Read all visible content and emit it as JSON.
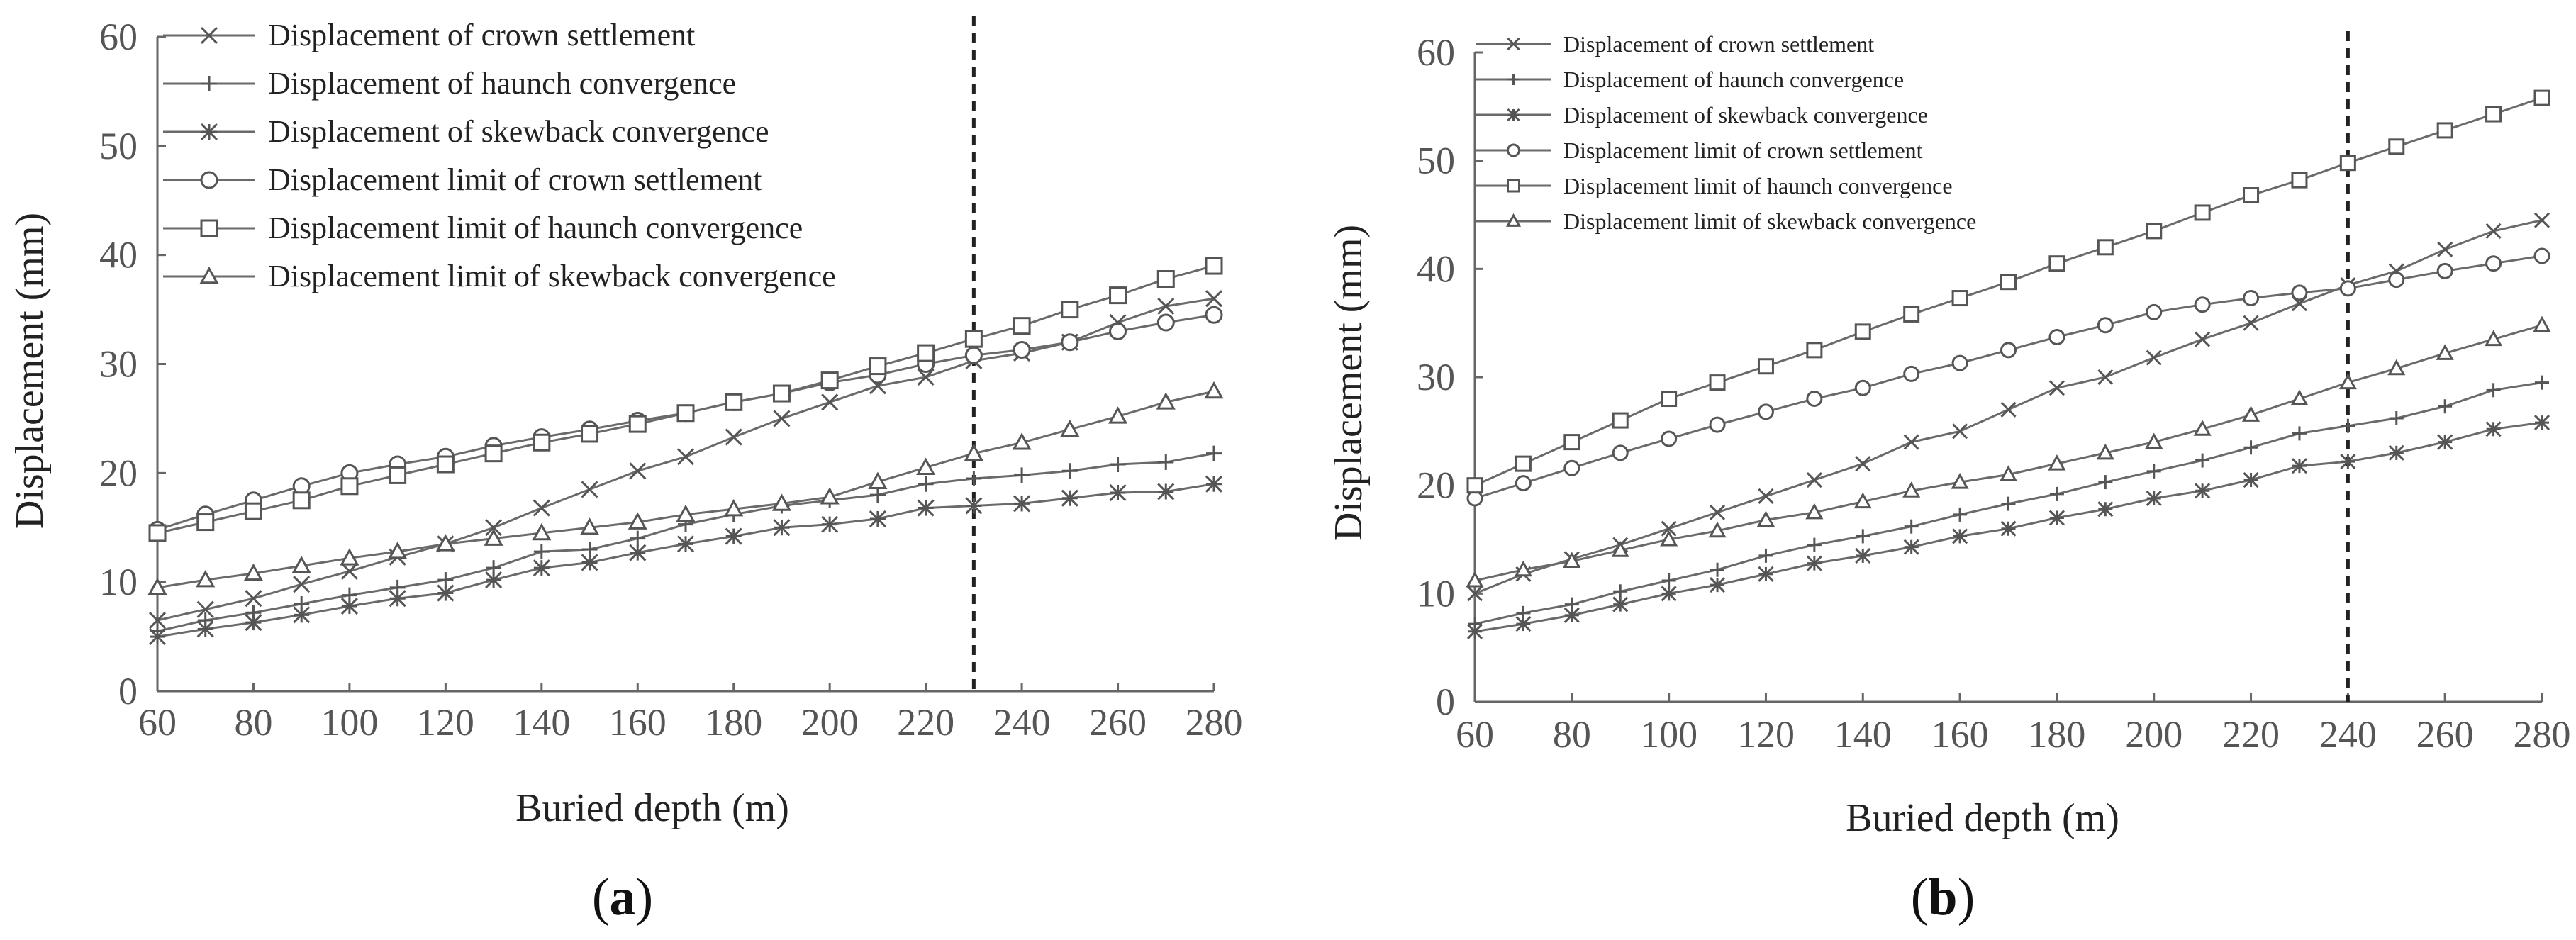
{
  "chart_data": [
    {
      "id": "a",
      "type": "line",
      "panel_caption": "a",
      "xlabel": "Buried depth (m)",
      "ylabel": "Displacement (mm)",
      "xlim": [
        60,
        280
      ],
      "ylim": [
        0,
        60
      ],
      "xticks": [
        60,
        80,
        100,
        120,
        140,
        160,
        180,
        200,
        220,
        240,
        260,
        280
      ],
      "yticks": [
        0,
        10,
        20,
        30,
        40,
        50,
        60
      ],
      "x": [
        60,
        70,
        80,
        90,
        100,
        110,
        120,
        130,
        140,
        150,
        160,
        170,
        180,
        190,
        200,
        210,
        220,
        230,
        240,
        250,
        260,
        270,
        280
      ],
      "vline_x": 230,
      "series": [
        {
          "name": "Displacement of crown settlement",
          "marker": "x",
          "values": [
            6.5,
            7.5,
            8.5,
            9.8,
            11.0,
            12.3,
            13.5,
            15.0,
            16.8,
            18.5,
            20.2,
            21.5,
            23.3,
            25.0,
            26.5,
            28.0,
            28.8,
            30.3,
            31.0,
            32.0,
            33.8,
            35.3,
            36.0
          ]
        },
        {
          "name": "Displacement of haunch convergence",
          "marker": "plus",
          "values": [
            5.5,
            6.5,
            7.2,
            8.0,
            8.8,
            9.5,
            10.2,
            11.3,
            12.8,
            13.0,
            14.0,
            15.3,
            16.2,
            17.0,
            17.5,
            18.0,
            19.0,
            19.5,
            19.8,
            20.2,
            20.8,
            21.0,
            21.8
          ]
        },
        {
          "name": "Displacement of skewback convergence",
          "marker": "star",
          "values": [
            5.0,
            5.7,
            6.3,
            7.0,
            7.8,
            8.5,
            9.0,
            10.2,
            11.3,
            11.8,
            12.7,
            13.5,
            14.2,
            15.0,
            15.3,
            15.8,
            16.8,
            17.0,
            17.2,
            17.7,
            18.2,
            18.3,
            19.0
          ]
        },
        {
          "name": "Displacement limit of crown settlement",
          "marker": "circle",
          "values": [
            14.8,
            16.2,
            17.5,
            18.8,
            20.0,
            20.8,
            21.5,
            22.5,
            23.3,
            24.0,
            24.8,
            25.5,
            26.5,
            27.3,
            28.3,
            29.0,
            30.0,
            30.8,
            31.3,
            32.0,
            33.0,
            33.8,
            34.5
          ]
        },
        {
          "name": "Displacement limit of haunch convergence",
          "marker": "square",
          "values": [
            14.5,
            15.5,
            16.5,
            17.5,
            18.8,
            19.8,
            20.8,
            21.8,
            22.8,
            23.6,
            24.5,
            25.5,
            26.5,
            27.3,
            28.5,
            29.8,
            31.0,
            32.3,
            33.5,
            35.0,
            36.3,
            37.8,
            39.0
          ]
        },
        {
          "name": "Displacement limit of skewback convergence",
          "marker": "triangle",
          "values": [
            9.5,
            10.2,
            10.8,
            11.5,
            12.2,
            12.8,
            13.5,
            14.0,
            14.5,
            15.0,
            15.5,
            16.2,
            16.7,
            17.2,
            17.8,
            19.2,
            20.5,
            21.8,
            22.8,
            24.0,
            25.2,
            26.5,
            27.5
          ]
        }
      ]
    },
    {
      "id": "b",
      "type": "line",
      "panel_caption": "b",
      "xlabel": "Buried depth (m)",
      "ylabel": "Displacement (mm)",
      "xlim": [
        60,
        280
      ],
      "ylim": [
        0,
        60
      ],
      "xticks": [
        60,
        80,
        100,
        120,
        140,
        160,
        180,
        200,
        220,
        240,
        260,
        280
      ],
      "yticks": [
        0,
        10,
        20,
        30,
        40,
        50,
        60
      ],
      "x": [
        60,
        70,
        80,
        90,
        100,
        110,
        120,
        130,
        140,
        150,
        160,
        170,
        180,
        190,
        200,
        210,
        220,
        230,
        240,
        250,
        260,
        270,
        280
      ],
      "vline_x": 240,
      "series": [
        {
          "name": "Displacement of crown settlement",
          "marker": "x",
          "values": [
            10.0,
            11.8,
            13.2,
            14.5,
            16.0,
            17.5,
            19.0,
            20.5,
            22.0,
            24.0,
            25.0,
            27.0,
            29.0,
            30.0,
            31.8,
            33.5,
            35.0,
            36.8,
            38.5,
            39.8,
            41.8,
            43.5,
            44.5
          ]
        },
        {
          "name": "Displacement of haunch convergence",
          "marker": "plus",
          "values": [
            7.2,
            8.2,
            9.0,
            10.2,
            11.2,
            12.2,
            13.5,
            14.5,
            15.3,
            16.2,
            17.3,
            18.3,
            19.2,
            20.3,
            21.3,
            22.3,
            23.5,
            24.8,
            25.5,
            26.2,
            27.3,
            28.8,
            29.5
          ]
        },
        {
          "name": "Displacement of skewback convergence",
          "marker": "star",
          "values": [
            6.5,
            7.2,
            8.0,
            9.0,
            10.0,
            10.8,
            11.8,
            12.8,
            13.5,
            14.3,
            15.3,
            16.0,
            17.0,
            17.8,
            18.8,
            19.5,
            20.5,
            21.8,
            22.2,
            23.0,
            24.0,
            25.2,
            25.8
          ]
        },
        {
          "name": "Displacement limit of crown settlement",
          "marker": "circle",
          "values": [
            18.8,
            20.2,
            21.6,
            23.0,
            24.3,
            25.6,
            26.8,
            28.0,
            29.0,
            30.3,
            31.3,
            32.5,
            33.7,
            34.8,
            36.0,
            36.7,
            37.3,
            37.8,
            38.2,
            39.0,
            39.8,
            40.5,
            41.2
          ]
        },
        {
          "name": "Displacement limit of haunch convergence",
          "marker": "square",
          "values": [
            20.0,
            22.0,
            24.0,
            26.0,
            28.0,
            29.5,
            31.0,
            32.5,
            34.2,
            35.8,
            37.3,
            38.8,
            40.5,
            42.0,
            43.5,
            45.2,
            46.8,
            48.2,
            49.8,
            51.3,
            52.8,
            54.3,
            55.8
          ]
        },
        {
          "name": "Displacement limit of skewback convergence",
          "marker": "triangle",
          "values": [
            11.2,
            12.2,
            13.0,
            14.0,
            15.0,
            15.8,
            16.8,
            17.5,
            18.5,
            19.5,
            20.3,
            21.0,
            22.0,
            23.0,
            24.0,
            25.2,
            26.5,
            28.0,
            29.5,
            30.8,
            32.2,
            33.5,
            34.8
          ]
        }
      ]
    }
  ]
}
